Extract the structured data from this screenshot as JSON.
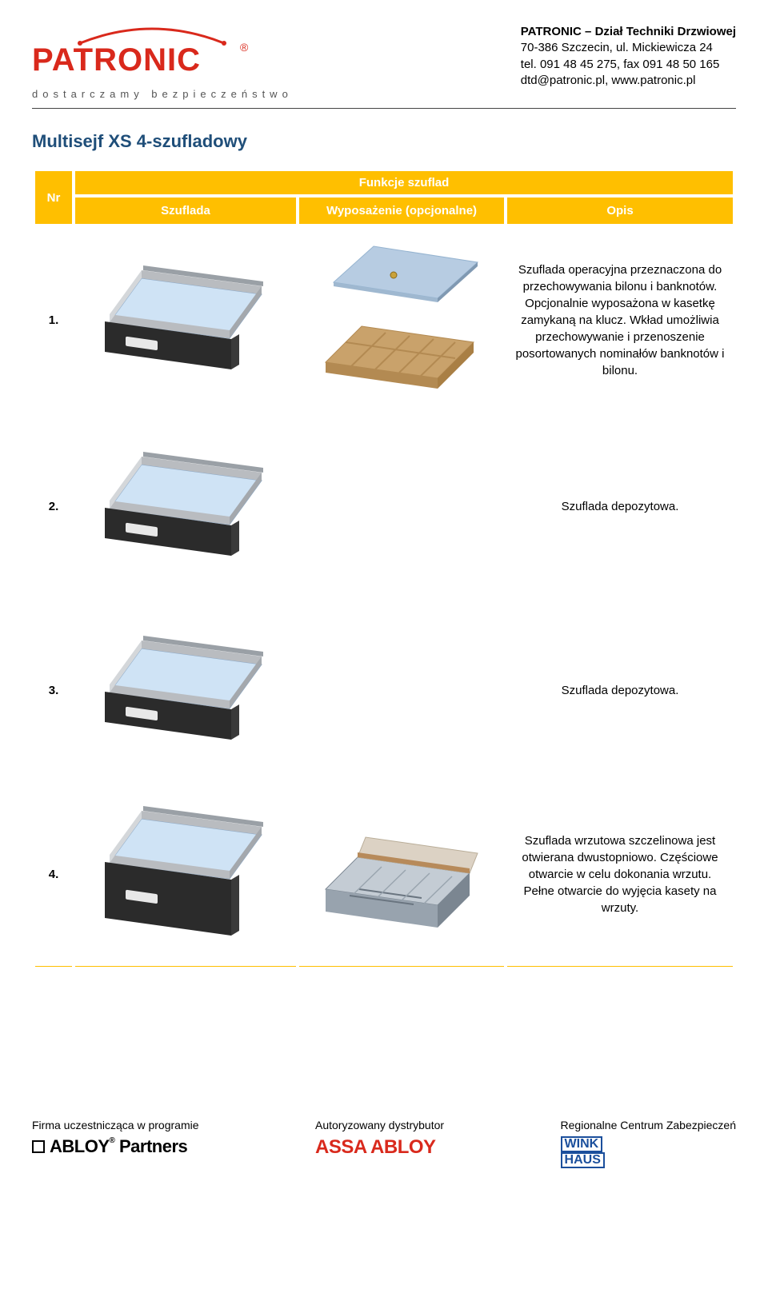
{
  "header": {
    "brand": "PATRONIC",
    "reg_mark": "®",
    "tagline": "dostarczamy bezpieczeństwo",
    "info_line1_bold": "PATRONIC – Dział Techniki Drzwiowej",
    "info_line2": "70-386 Szczecin, ul. Mickiewicza 24",
    "info_line3": "tel. 091 48 45 275, fax 091 48 50 165",
    "info_line4": "dtd@patronic.pl, www.patronic.pl",
    "logo_color": "#d9291c"
  },
  "title": "Multisejf XS 4-szufladowy",
  "table": {
    "header_bg": "#ffbf00",
    "header_fg": "#ffffff",
    "col_nr": "Nr",
    "col_group": "Funkcje szuflad",
    "col_drawer": "Szuflada",
    "col_opt": "Wyposażenie (opcjonalne)",
    "col_desc": "Opis",
    "rows": [
      {
        "nr": "1.",
        "has_opt": true,
        "desc": "Szuflada operacyjna przeznaczona do przechowywania bilonu i banknotów. Opcjonalnie wyposażona w kasetkę zamykaną na klucz. Wkład umożliwia przechowywanie i przenoszenie posortowanych nominałów banknotów i bilonu."
      },
      {
        "nr": "2.",
        "has_opt": false,
        "desc": "Szuflada depozytowa."
      },
      {
        "nr": "3.",
        "has_opt": false,
        "desc": "Szuflada depozytowa."
      },
      {
        "nr": "4.",
        "has_opt": true,
        "deep": true,
        "desc": "Szuflada wrzutowa szczelinowa jest otwierana dwustopniowo. Częściowe otwarcie w celu dokonania wrzutu. Pełne otwarcie do wyjęcia kasety na wrzuty."
      }
    ]
  },
  "drawer_colors": {
    "front": "#2b2b2b",
    "side": "#b9bcc0",
    "inner": "#cfe3f5",
    "rail": "#9aa0a6",
    "handle": "#e8e8e8"
  },
  "cassette_colors": {
    "lid": "#b7cce2",
    "tray": "#c9a26b",
    "tray_div": "#b38a52"
  },
  "deep_box_colors": {
    "lid_top": "#dcd2c4",
    "lid_hinge": "#b78a5a",
    "body": "#98a3ae"
  },
  "footer": {
    "col1_label": "Firma uczestnicząca w programie",
    "col1_logo_text": "ABLOY  Partners",
    "col2_label": "Autoryzowany dystrybutor",
    "col2_logo_text": "ASSA ABLOY",
    "col3_label": "Regionalne Centrum Zabezpieczeń",
    "col3_logo_line1": "WINK",
    "col3_logo_line2": "HAUS"
  }
}
